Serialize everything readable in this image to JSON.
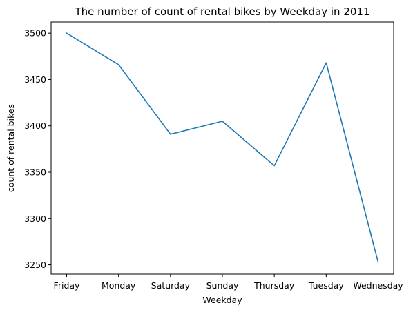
{
  "chart_data": {
    "type": "line",
    "title": "The number of count of rental bikes by Weekday in 2011",
    "xlabel": "Weekday",
    "ylabel": "count of rental bikes",
    "categories": [
      "Friday",
      "Monday",
      "Saturday",
      "Sunday",
      "Thursday",
      "Tuesday",
      "Wednesday"
    ],
    "series": [
      {
        "values": [
          3500,
          3466,
          3391,
          3405,
          3357,
          3468,
          3253
        ]
      }
    ],
    "ylim": [
      3240,
      3512
    ],
    "yticks": [
      3250,
      3300,
      3350,
      3400,
      3450,
      3500
    ],
    "ytick_labels": [
      "3250",
      "3300",
      "3350",
      "3400",
      "3450",
      "3500"
    ],
    "grid": false,
    "colors": {
      "line": "#1f77b4",
      "axes": "#000000"
    }
  }
}
